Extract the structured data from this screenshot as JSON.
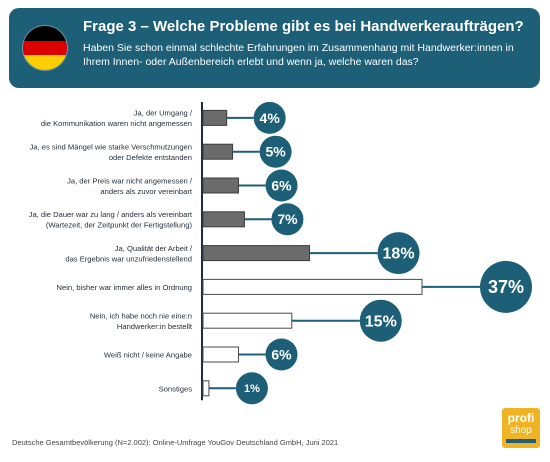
{
  "header": {
    "title": "Frage 3 – Welche Probleme gibt es bei Handwerkeraufträgen?",
    "subtitle": "Haben Sie schon einmal schlechte Erfahrungen im Zusammenhang mit Handwerker:innen in Ihrem Innen- oder Außenbereich erlebt und wenn ja, welche waren das?"
  },
  "footer": {
    "source": "Deutsche Gesamtbevölkerung (N=2.002): Online-Umfrage YouGov Deutschland GmbH, Juni 2021"
  },
  "logo": {
    "line1": "profi",
    "line2": "shop"
  },
  "colors": {
    "accent": "#1c5f77",
    "bar_gray": "#6b6b6b",
    "bar_white": "#ffffff",
    "flag": [
      "#000000",
      "#dd0000",
      "#ffce00"
    ],
    "logo": "#f0b323"
  },
  "chart_data": {
    "type": "bar",
    "orientation": "horizontal",
    "unit": "%",
    "categories": [
      [
        "Ja, der Umgang /",
        "die Kommunikation waren nicht angemessen"
      ],
      [
        "Ja, es sind Mängel wie starke Verschmutzungen",
        "oder Defekte entstanden"
      ],
      [
        "Ja, der Preis war nicht angemessen /",
        "anders als zuvor vereinbart"
      ],
      [
        "Ja, die Dauer war zu lang / anders als vereinbart",
        "(Wartezeit, der Zeitpunkt der Fertigstellung)"
      ],
      [
        "Ja, Qualität der Arbeit /",
        "das Ergebnis war unzufriedenstellend"
      ],
      [
        "Nein, bisher war immer alles in Ordnung"
      ],
      [
        "Nein, ich habe noch nie eine:n",
        "Handwerker:in bestellt"
      ],
      [
        "Weiß nicht / keine Angabe"
      ],
      [
        "Sonstiges"
      ]
    ],
    "values": [
      4,
      5,
      6,
      7,
      18,
      37,
      15,
      6,
      1
    ],
    "bar_style": [
      "gray",
      "gray",
      "gray",
      "gray",
      "gray",
      "white",
      "white",
      "white",
      "white"
    ],
    "data_labels": [
      "4%",
      "5%",
      "6%",
      "7%",
      "18%",
      "37%",
      "15%",
      "6%",
      "1%"
    ],
    "xlim": [
      0,
      37
    ],
    "grid": false,
    "legend": "none"
  }
}
